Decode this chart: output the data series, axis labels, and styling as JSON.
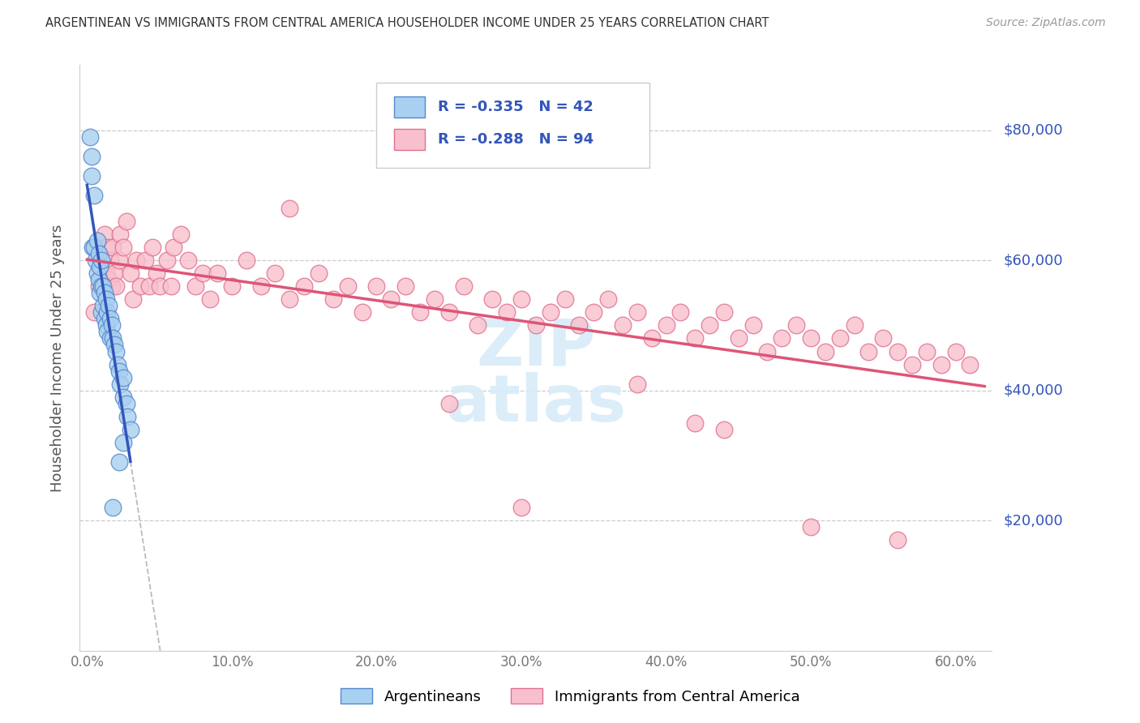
{
  "title": "ARGENTINEAN VS IMMIGRANTS FROM CENTRAL AMERICA HOUSEHOLDER INCOME UNDER 25 YEARS CORRELATION CHART",
  "source": "Source: ZipAtlas.com",
  "ylabel": "Householder Income Under 25 years",
  "ytick_labels": [
    "$20,000",
    "$40,000",
    "$60,000",
    "$80,000"
  ],
  "ytick_vals": [
    20000,
    40000,
    60000,
    80000
  ],
  "xlabel_ticks": [
    "0.0%",
    "10.0%",
    "20.0%",
    "30.0%",
    "40.0%",
    "50.0%",
    "60.0%"
  ],
  "xlabel_vals": [
    0.0,
    0.1,
    0.2,
    0.3,
    0.4,
    0.5,
    0.6
  ],
  "ylim": [
    0,
    90000
  ],
  "xlim": [
    -0.005,
    0.625
  ],
  "blue_face": "#A8D0F0",
  "blue_edge": "#5588CC",
  "pink_face": "#F8C0CC",
  "pink_edge": "#E07090",
  "blue_line_color": "#3355BB",
  "pink_line_color": "#DD5577",
  "legend_text_color": "#3355BB",
  "watermark_color": "#D8ECF8",
  "legend_r_blue": "-0.335",
  "legend_n_blue": "42",
  "legend_r_pink": "-0.288",
  "legend_n_pink": "94",
  "legend_label_blue": "Argentineans",
  "legend_label_pink": "Immigrants from Central America",
  "arg_x": [
    0.002,
    0.003,
    0.003,
    0.004,
    0.005,
    0.005,
    0.006,
    0.007,
    0.007,
    0.008,
    0.008,
    0.009,
    0.009,
    0.01,
    0.01,
    0.01,
    0.011,
    0.011,
    0.012,
    0.012,
    0.013,
    0.013,
    0.014,
    0.014,
    0.015,
    0.016,
    0.016,
    0.017,
    0.018,
    0.019,
    0.02,
    0.021,
    0.022,
    0.023,
    0.025,
    0.025,
    0.027,
    0.028,
    0.03,
    0.025,
    0.018,
    0.022
  ],
  "arg_y": [
    79000,
    76000,
    73000,
    62000,
    62000,
    70000,
    60000,
    63000,
    58000,
    61000,
    57000,
    59000,
    55000,
    60000,
    56000,
    52000,
    56000,
    53000,
    55000,
    51000,
    54000,
    50000,
    52000,
    49000,
    53000,
    51000,
    48000,
    50000,
    48000,
    47000,
    46000,
    44000,
    43000,
    41000,
    39000,
    42000,
    38000,
    36000,
    34000,
    32000,
    22000,
    29000
  ],
  "ca_x": [
    0.005,
    0.008,
    0.01,
    0.012,
    0.013,
    0.014,
    0.015,
    0.016,
    0.017,
    0.018,
    0.019,
    0.02,
    0.022,
    0.023,
    0.025,
    0.027,
    0.03,
    0.032,
    0.034,
    0.037,
    0.04,
    0.043,
    0.045,
    0.048,
    0.05,
    0.055,
    0.058,
    0.06,
    0.065,
    0.07,
    0.075,
    0.08,
    0.085,
    0.09,
    0.1,
    0.11,
    0.12,
    0.13,
    0.14,
    0.15,
    0.16,
    0.17,
    0.18,
    0.19,
    0.2,
    0.21,
    0.22,
    0.23,
    0.24,
    0.25,
    0.26,
    0.27,
    0.28,
    0.29,
    0.3,
    0.31,
    0.32,
    0.33,
    0.34,
    0.35,
    0.36,
    0.37,
    0.38,
    0.39,
    0.4,
    0.41,
    0.42,
    0.43,
    0.44,
    0.45,
    0.46,
    0.47,
    0.48,
    0.49,
    0.5,
    0.51,
    0.52,
    0.53,
    0.54,
    0.55,
    0.56,
    0.57,
    0.58,
    0.59,
    0.6,
    0.61,
    0.44,
    0.3,
    0.5,
    0.56,
    0.38,
    0.14,
    0.25,
    0.42
  ],
  "ca_y": [
    52000,
    56000,
    60000,
    64000,
    58000,
    62000,
    57000,
    60000,
    56000,
    62000,
    58000,
    56000,
    60000,
    64000,
    62000,
    66000,
    58000,
    54000,
    60000,
    56000,
    60000,
    56000,
    62000,
    58000,
    56000,
    60000,
    56000,
    62000,
    64000,
    60000,
    56000,
    58000,
    54000,
    58000,
    56000,
    60000,
    56000,
    58000,
    54000,
    56000,
    58000,
    54000,
    56000,
    52000,
    56000,
    54000,
    56000,
    52000,
    54000,
    52000,
    56000,
    50000,
    54000,
    52000,
    54000,
    50000,
    52000,
    54000,
    50000,
    52000,
    54000,
    50000,
    52000,
    48000,
    50000,
    52000,
    48000,
    50000,
    52000,
    48000,
    50000,
    46000,
    48000,
    50000,
    48000,
    46000,
    48000,
    50000,
    46000,
    48000,
    46000,
    44000,
    46000,
    44000,
    46000,
    44000,
    34000,
    22000,
    19000,
    17000,
    41000,
    68000,
    38000,
    35000
  ]
}
